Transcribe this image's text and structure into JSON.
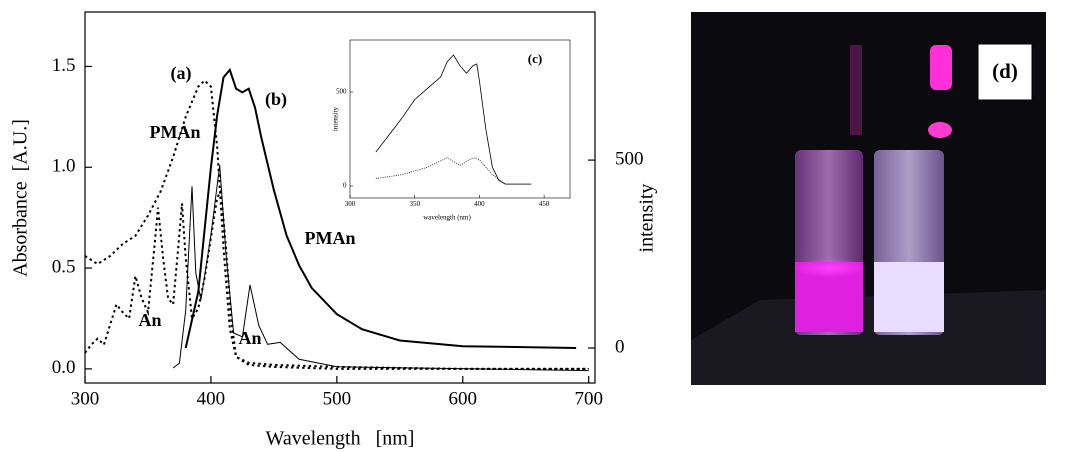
{
  "chart_data": [
    {
      "type": "line",
      "xlabel": "Wavelength   [nm]",
      "ylabel": "Absorbance  [A.U.]",
      "y2label": "intensity",
      "xlim": [
        300,
        705
      ],
      "ylim": [
        -0.07,
        1.77
      ],
      "y2lim": [
        -93,
        894
      ],
      "xticks": [
        300,
        400,
        500,
        600,
        700
      ],
      "yticks": [
        {
          "value": 0,
          "label": "0.0"
        },
        0.5,
        {
          "value": 1,
          "label": "1.0"
        },
        1.5
      ],
      "y2ticks": [
        0,
        500
      ],
      "annotations": [
        "(a)",
        "(b)",
        "PMAn",
        "PMAn",
        "An",
        "An"
      ],
      "series": [
        {
          "color": "#000",
          "dash": true,
          "width": 2,
          "x": [
            300,
            310,
            320,
            330,
            340,
            350,
            360,
            370,
            380,
            390,
            395,
            400,
            405,
            410,
            415,
            420,
            430,
            450,
            500,
            600,
            700
          ],
          "values": [
            0.56,
            0.52,
            0.56,
            0.62,
            0.66,
            0.76,
            0.88,
            1.05,
            1.25,
            1.4,
            1.43,
            1.4,
            1.1,
            0.6,
            0.2,
            0.06,
            0.03,
            0.02,
            0.01,
            0,
            0
          ]
        },
        {
          "color": "#000",
          "dash": true,
          "width": 2,
          "x": [
            300,
            305,
            310,
            315,
            320,
            325,
            330,
            335,
            340,
            345,
            350,
            355,
            358,
            362,
            366,
            370,
            374,
            377,
            380,
            385,
            390,
            395,
            400,
            405,
            408,
            412,
            416,
            420,
            430,
            450,
            500,
            700
          ],
          "values": [
            0.08,
            0.12,
            0.15,
            0.12,
            0.22,
            0.32,
            0.28,
            0.25,
            0.46,
            0.35,
            0.28,
            0.6,
            0.8,
            0.55,
            0.35,
            0.32,
            0.6,
            0.82,
            0.55,
            0.25,
            0.3,
            0.45,
            0.65,
            0.85,
            0.88,
            0.6,
            0.25,
            0.06,
            0.02,
            0.01,
            0,
            0
          ]
        },
        {
          "color": "#000",
          "dash": false,
          "width": 2,
          "axis": "y2",
          "x": [
            380,
            390,
            400,
            405,
            410,
            415,
            420,
            425,
            430,
            435,
            440,
            450,
            460,
            470,
            480,
            500,
            520,
            550,
            600,
            690
          ],
          "values": [
            0,
            150,
            480,
            620,
            720,
            740,
            690,
            680,
            690,
            640,
            560,
            420,
            300,
            220,
            160,
            90,
            50,
            20,
            5,
            0
          ]
        },
        {
          "color": "#000",
          "dash": false,
          "width": 1,
          "axis": "y2",
          "x": [
            370,
            375,
            380,
            385,
            388,
            392,
            400,
            407,
            412,
            418,
            425,
            431,
            438,
            445,
            455,
            460,
            470,
            500,
            700
          ],
          "values": [
            -53,
            -40,
            100,
            430,
            200,
            128,
            300,
            487,
            250,
            40,
            30,
            168,
            60,
            10,
            15,
            0,
            -30,
            -50,
            -60
          ]
        }
      ]
    },
    {
      "type": "line",
      "xlabel": "wavelength (nm)",
      "ylabel": "intensity",
      "xlim": [
        300,
        470
      ],
      "ylim": [
        -64,
        777
      ],
      "xticks": [
        300,
        350,
        400,
        450
      ],
      "yticks": [
        0,
        500
      ],
      "annotations": [
        "(c)"
      ],
      "series": [
        {
          "color": "#000",
          "dash": false,
          "width": 0.8,
          "x": [
            320,
            330,
            340,
            350,
            360,
            370,
            375,
            380,
            385,
            390,
            395,
            398,
            400,
            405,
            410,
            415,
            420,
            440
          ],
          "values": [
            181,
            270,
            360,
            460,
            520,
            580,
            660,
            697,
            640,
            600,
            640,
            650,
            560,
            300,
            100,
            30,
            10,
            10
          ]
        },
        {
          "color": "#000",
          "dash": true,
          "width": 0.8,
          "x": [
            320,
            340,
            360,
            375,
            385,
            395,
            400,
            410,
            420,
            440
          ],
          "values": [
            40,
            60,
            100,
            150,
            110,
            150,
            140,
            60,
            10,
            10
          ]
        }
      ]
    }
  ],
  "photo": {
    "label": "(d)"
  }
}
